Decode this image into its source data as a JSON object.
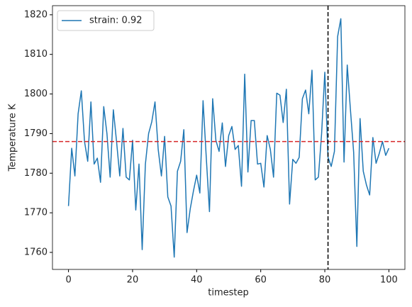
{
  "chart_data": {
    "type": "line",
    "xlabel": "timestep",
    "ylabel": "Temperature K",
    "x": [
      0,
      1,
      2,
      3,
      4,
      5,
      6,
      7,
      8,
      9,
      10,
      11,
      12,
      13,
      14,
      15,
      16,
      17,
      18,
      19,
      20,
      21,
      22,
      23,
      24,
      25,
      26,
      27,
      28,
      29,
      30,
      31,
      32,
      33,
      34,
      35,
      36,
      37,
      38,
      39,
      40,
      41,
      42,
      43,
      44,
      45,
      46,
      47,
      48,
      49,
      50,
      51,
      52,
      53,
      54,
      55,
      56,
      57,
      58,
      59,
      60,
      61,
      62,
      63,
      64,
      65,
      66,
      67,
      68,
      69,
      70,
      71,
      72,
      73,
      74,
      75,
      76,
      77,
      78,
      79,
      80,
      81,
      82,
      83,
      84,
      85,
      86,
      87,
      88,
      89,
      90,
      91,
      92,
      93,
      94,
      95,
      96,
      97,
      98,
      99,
      100
    ],
    "series": [
      {
        "name": "strain: 0.92",
        "color": "#1f77b4",
        "values": [
          1771.7,
          1786.3,
          1779.3,
          1795,
          1800.8,
          1788,
          1783,
          1798,
          1782.3,
          1783.8,
          1777.7,
          1796.8,
          1790,
          1779,
          1796,
          1788,
          1779.3,
          1791.3,
          1779,
          1778.3,
          1788.3,
          1770.7,
          1782.3,
          1760.7,
          1782.3,
          1790,
          1793,
          1798,
          1786,
          1779.3,
          1789.3,
          1774,
          1771.7,
          1758.8,
          1780.5,
          1783,
          1791,
          1765,
          1771,
          1775.5,
          1779.5,
          1775,
          1798.3,
          1784,
          1770.3,
          1798.8,
          1788.3,
          1785.5,
          1792.7,
          1781.7,
          1789.5,
          1791.8,
          1786,
          1787,
          1776.7,
          1805,
          1780.3,
          1793.3,
          1793.3,
          1782.3,
          1782.5,
          1776.5,
          1789.5,
          1786,
          1779,
          1800.2,
          1799.7,
          1792.8,
          1801.2,
          1772.2,
          1783.5,
          1782.5,
          1784,
          1798.8,
          1801,
          1795,
          1806,
          1778.3,
          1779,
          1790,
          1805.5,
          1784,
          1781.7,
          1785.5,
          1814.5,
          1819,
          1782.8,
          1807.3,
          1796,
          1785.3,
          1761.5,
          1793.8,
          1780.5,
          1777,
          1774.5,
          1789,
          1782.5,
          1785,
          1788,
          1784.5,
          1786.3
        ]
      }
    ],
    "xlim": [
      -5,
      105
    ],
    "xticks": [
      0,
      20,
      40,
      60,
      80,
      100
    ],
    "ylim": [
      1755.7,
      1822.3
    ],
    "yticks": [
      1760,
      1770,
      1780,
      1790,
      1800,
      1810,
      1820
    ],
    "hlines": [
      {
        "value": 1788,
        "color": "#d62728"
      }
    ],
    "vlines": [
      {
        "value": 81,
        "color": "#000000"
      }
    ],
    "legend": "upper left",
    "grid": false
  }
}
